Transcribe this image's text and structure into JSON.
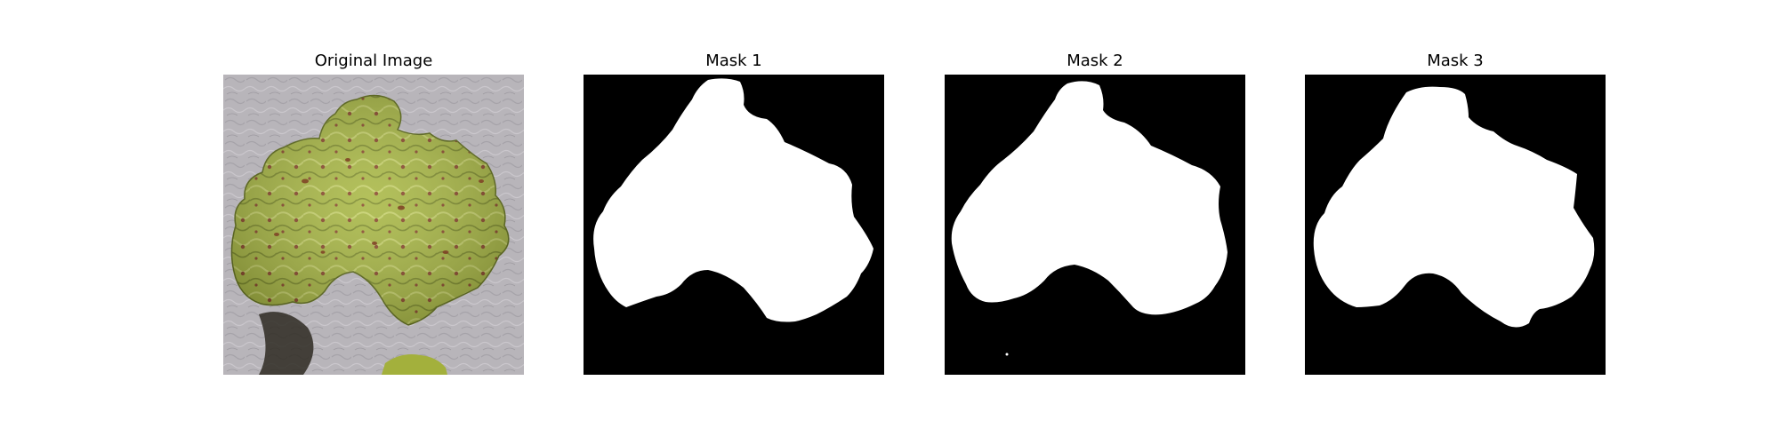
{
  "panels": [
    {
      "title": "Original Image"
    },
    {
      "title": "Mask 1"
    },
    {
      "title": "Mask 2"
    },
    {
      "title": "Mask 3"
    }
  ],
  "colors": {
    "background": "#ffffff",
    "mask_background": "#000000",
    "mask_foreground": "#ffffff",
    "leaf": "#a7b63f",
    "table_surface": "#b7b4b9"
  }
}
